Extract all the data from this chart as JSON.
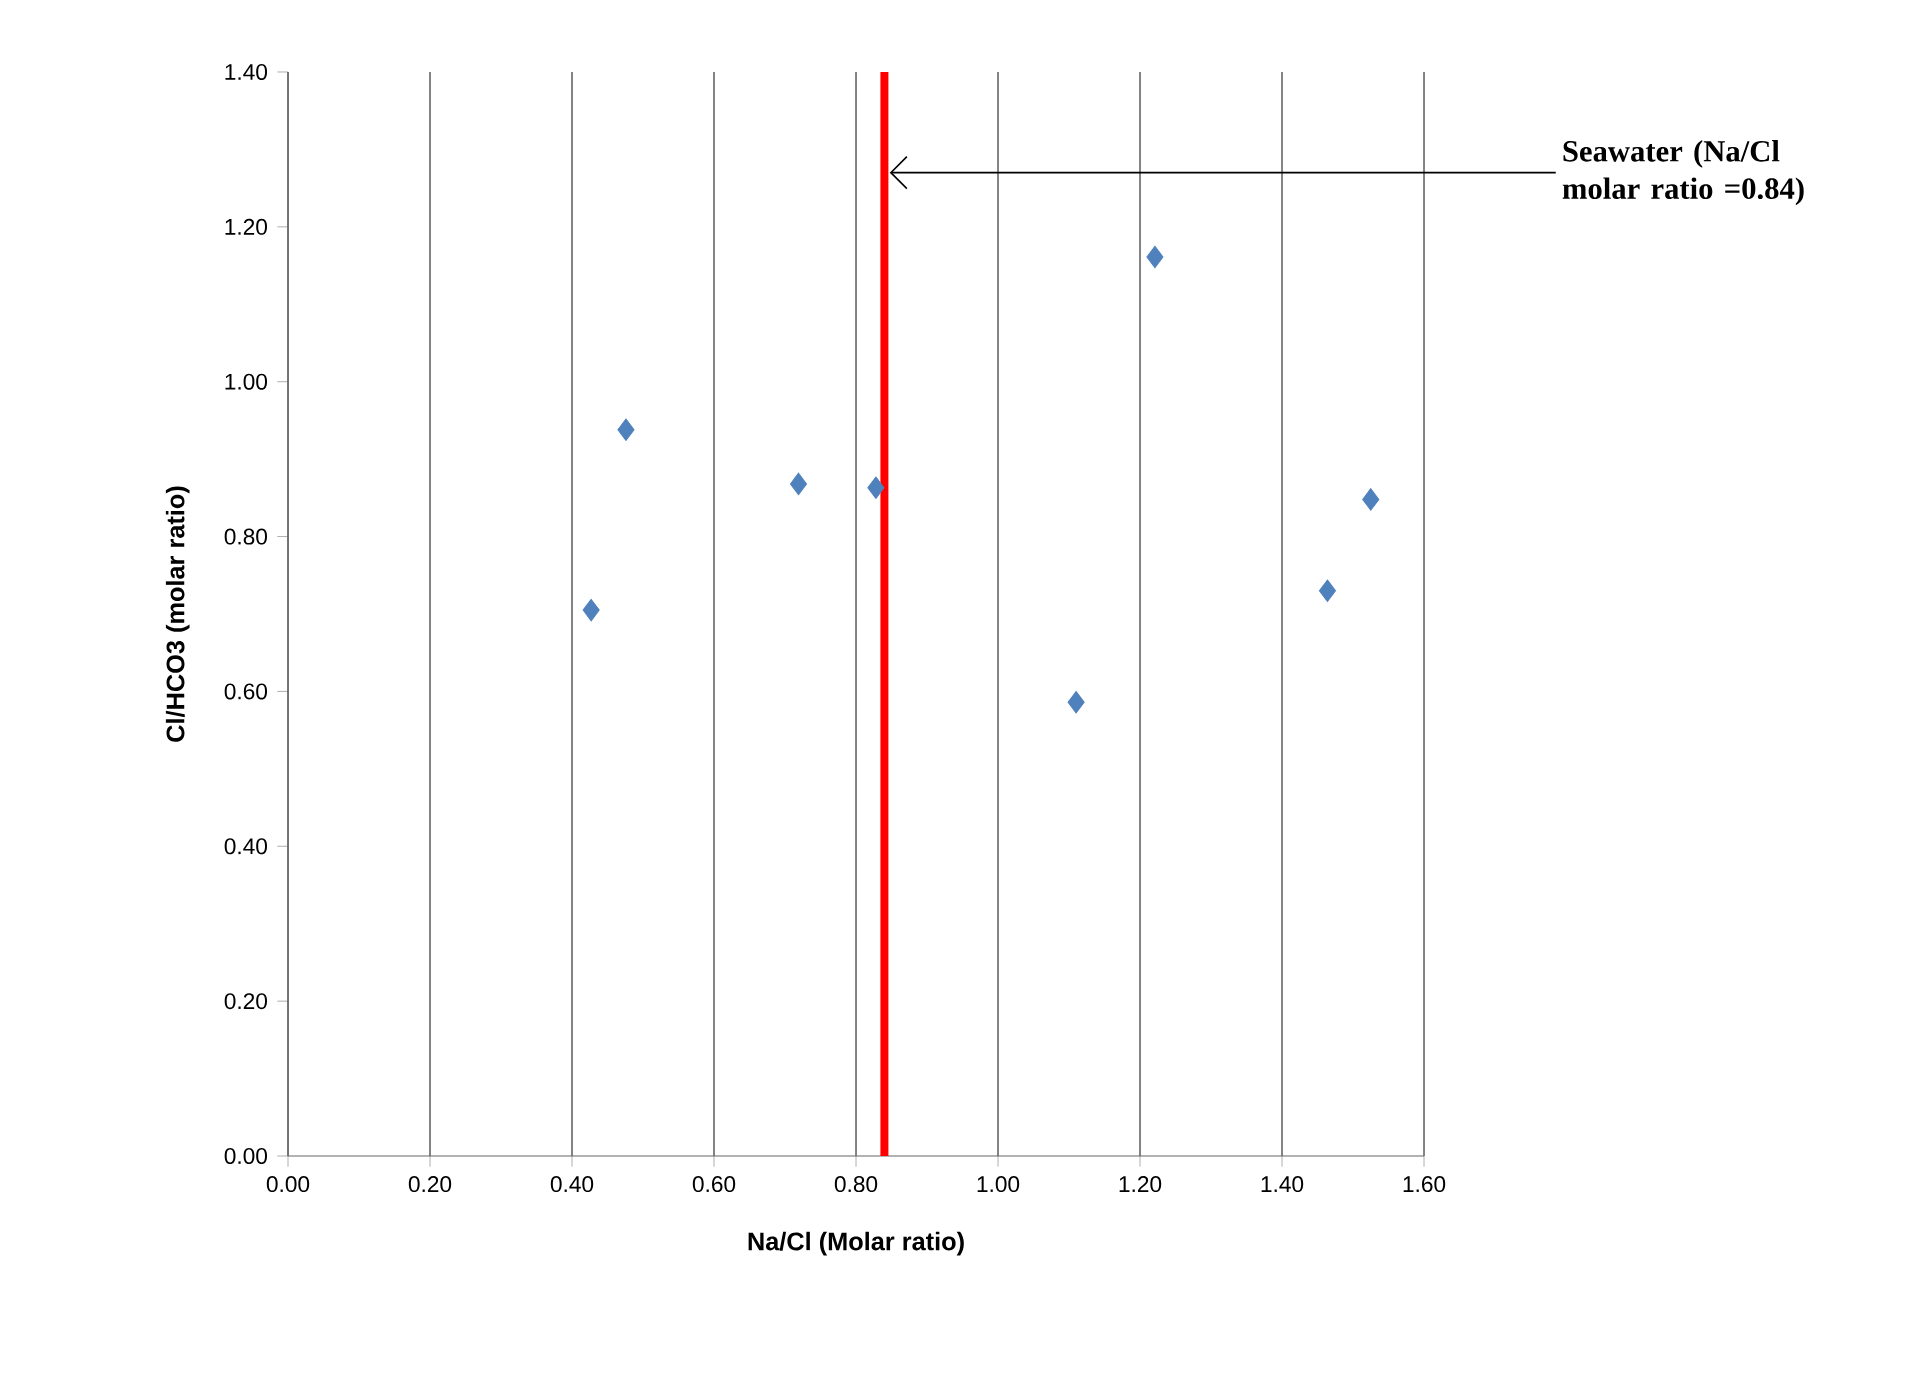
{
  "chart_data": {
    "type": "scatter",
    "xlabel": "Na/Cl (Molar ratio)",
    "ylabel": "Cl/HCO3 (molar ratio)",
    "x": [
      0.427,
      0.476,
      0.719,
      0.828,
      1.221,
      1.11,
      1.464,
      1.525
    ],
    "series": [
      {
        "color": "#4f81bd",
        "values": [
          0.705,
          0.938,
          0.868,
          0.863,
          1.161,
          0.586,
          0.73,
          0.848
        ]
      }
    ],
    "marker": "diamond",
    "grid": "x",
    "xlim": [
      0,
      1.6
    ],
    "ylim": [
      0,
      1.4
    ],
    "xticks": [
      {
        "value": 0,
        "label": "0.00"
      },
      {
        "value": 0.2,
        "label": "0.20"
      },
      {
        "value": 0.4,
        "label": "0.40"
      },
      {
        "value": 0.6,
        "label": "0.60"
      },
      {
        "value": 0.8,
        "label": "0.80"
      },
      {
        "value": 1.0,
        "label": "1.00"
      },
      {
        "value": 1.2,
        "label": "1.20"
      },
      {
        "value": 1.4,
        "label": "1.40"
      },
      {
        "value": 1.6,
        "label": "1.60"
      }
    ],
    "yticks": [
      {
        "value": 0,
        "label": "0.00"
      },
      {
        "value": 0.2,
        "label": "0.20"
      },
      {
        "value": 0.4,
        "label": "0.40"
      },
      {
        "value": 0.6,
        "label": "0.60"
      },
      {
        "value": 0.8,
        "label": "0.80"
      },
      {
        "value": 1.0,
        "label": "1.00"
      },
      {
        "value": 1.2,
        "label": "1.20"
      },
      {
        "value": 1.4,
        "label": "1.40"
      }
    ],
    "ref_lines": [
      {
        "axis": "x",
        "value": 0.84,
        "color": "#ff0000"
      }
    ],
    "annotations": [
      {
        "text": "Seawater (Na/Cl molar ratio =0.84)",
        "x": 0.84,
        "y": 1.27
      }
    ]
  }
}
